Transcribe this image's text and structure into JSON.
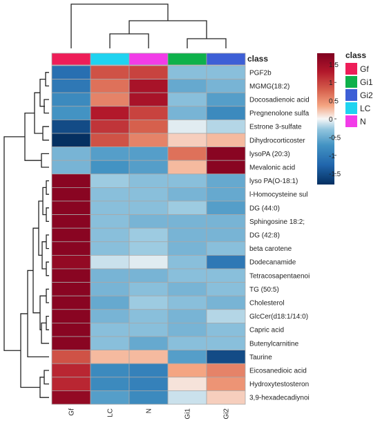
{
  "chart_data": {
    "type": "heatmap",
    "columns": [
      "Gf",
      "LC",
      "N",
      "Gi1",
      "Gi2"
    ],
    "column_classes": [
      "Gf",
      "LC",
      "N",
      "Gi1",
      "Gi2"
    ],
    "rows": [
      "PGF2b",
      "MGMG(18:2)",
      "Docosadienoic acid",
      "Pregnenolone sulfa",
      "Estrone 3-sulfate",
      "Dihydrocorticoster",
      "lysoPA (20:3)",
      "Mevalonic acid",
      "lyso PA(O-18:1)",
      "l-Homocysteine sul",
      "DG (44:0)",
      "Sphingosine 18:2;",
      "DG (42:8)",
      "beta carotene",
      "Dodecanamide",
      "Tetracosapentaenoi",
      "TG (50:5)",
      "Cholesterol",
      "GlcCer(d18:1/14:0)",
      "Capric acid",
      "Butenylcarnitine",
      "Taurine",
      "Eicosanedioic acid",
      "Hydroxytestosteron",
      "3,9-hexadecadiynoi"
    ],
    "values": [
      [
        -1.3,
        0.9,
        1.0,
        -0.5,
        -0.5
      ],
      [
        -1.2,
        0.7,
        1.4,
        -0.7,
        -0.6
      ],
      [
        -1.0,
        0.6,
        1.4,
        -0.5,
        -0.8
      ],
      [
        -0.9,
        1.3,
        1.0,
        -0.6,
        -1.0
      ],
      [
        -1.6,
        1.1,
        0.8,
        -0.1,
        -0.3
      ],
      [
        -1.8,
        0.9,
        0.6,
        0.2,
        0.3
      ],
      [
        -0.6,
        -0.8,
        -0.8,
        0.7,
        1.7
      ],
      [
        -0.6,
        -0.9,
        -0.8,
        0.3,
        1.7
      ],
      [
        1.7,
        -0.4,
        -0.5,
        -0.5,
        -0.7
      ],
      [
        1.7,
        -0.5,
        -0.5,
        -0.6,
        -0.7
      ],
      [
        1.7,
        -0.5,
        -0.5,
        -0.4,
        -0.8
      ],
      [
        1.7,
        -0.5,
        -0.6,
        -0.6,
        -0.6
      ],
      [
        1.7,
        -0.5,
        -0.4,
        -0.6,
        -0.6
      ],
      [
        1.7,
        -0.5,
        -0.4,
        -0.6,
        -0.5
      ],
      [
        1.6,
        -0.2,
        -0.1,
        -0.5,
        -1.2
      ],
      [
        1.7,
        -0.6,
        -0.6,
        -0.5,
        -0.5
      ],
      [
        1.7,
        -0.6,
        -0.5,
        -0.6,
        -0.5
      ],
      [
        1.7,
        -0.7,
        -0.4,
        -0.5,
        -0.6
      ],
      [
        1.7,
        -0.6,
        -0.5,
        -0.6,
        -0.3
      ],
      [
        1.7,
        -0.5,
        -0.5,
        -0.6,
        -0.5
      ],
      [
        1.7,
        -0.5,
        -0.7,
        -0.5,
        -0.5
      ],
      [
        0.9,
        0.3,
        0.3,
        -0.8,
        -1.6
      ],
      [
        1.2,
        -1.0,
        -1.1,
        0.4,
        0.6
      ],
      [
        1.2,
        -1.0,
        -1.1,
        0.1,
        0.5
      ],
      [
        1.6,
        -0.8,
        -1.0,
        -0.2,
        0.2
      ]
    ],
    "title": "",
    "xlabel": "",
    "ylabel": "",
    "colorbar": {
      "ticks": [
        "1.5",
        "1",
        "0.5",
        "0",
        "-0.5",
        "-1",
        "-1.5"
      ],
      "range": [
        -1.8,
        1.8
      ],
      "low_color": "#053061",
      "mid_color": "#f7f7f7",
      "high_color": "#7f0020"
    },
    "legend": {
      "title": "class",
      "entries": [
        {
          "name": "Gf",
          "color": "#ee1d58"
        },
        {
          "name": "Gi1",
          "color": "#0eb14b"
        },
        {
          "name": "Gi2",
          "color": "#3d5fd6"
        },
        {
          "name": "LC",
          "color": "#1fd3f0"
        },
        {
          "name": "N",
          "color": "#f23ce8"
        }
      ],
      "position": "right"
    },
    "annotation_label": "class",
    "dendrograms": {
      "rows": true,
      "columns": true
    }
  }
}
